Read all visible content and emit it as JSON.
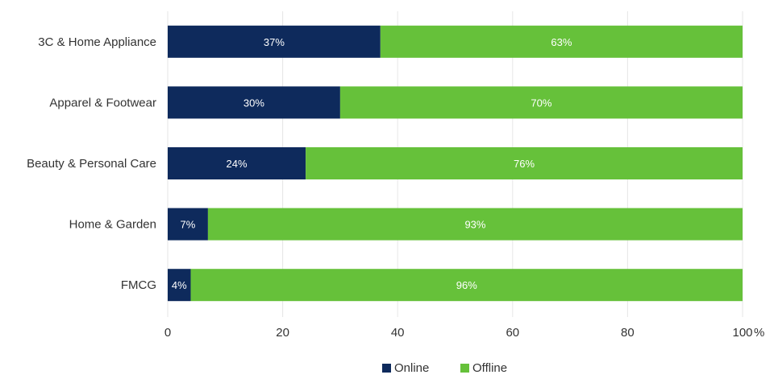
{
  "chart_data": {
    "type": "bar",
    "orientation": "horizontal",
    "stacked": true,
    "categories": [
      "3C & Home Appliance",
      "Apparel & Footwear",
      "Beauty & Personal Care",
      "Home & Garden",
      "FMCG"
    ],
    "series": [
      {
        "name": "Online",
        "color": "#0e2a5c",
        "values": [
          37,
          30,
          24,
          7,
          4
        ],
        "labels": [
          "37%",
          "30%",
          "24%",
          "7%",
          "4%"
        ]
      },
      {
        "name": "Offline",
        "color": "#66c13a",
        "values": [
          63,
          70,
          76,
          93,
          96
        ],
        "labels": [
          "63%",
          "70%",
          "76%",
          "93%",
          "96%"
        ]
      }
    ],
    "xlim": [
      0,
      100
    ],
    "xticks": [
      0,
      20,
      40,
      60,
      80,
      100
    ],
    "xtick_labels": [
      "0",
      "20",
      "40",
      "60",
      "80",
      "100"
    ],
    "xunit": "%",
    "grid": true,
    "legend": "bottom-center"
  }
}
